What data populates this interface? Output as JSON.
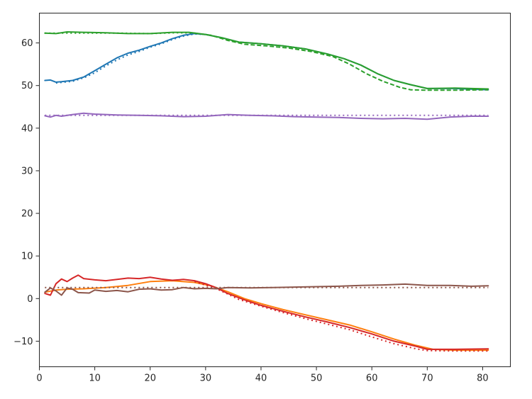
{
  "chart_data": {
    "type": "line",
    "title": "",
    "xlabel": "",
    "ylabel": "",
    "xlim": [
      0,
      85
    ],
    "ylim": [
      -16,
      67
    ],
    "xticks": [
      0,
      10,
      20,
      30,
      40,
      50,
      60,
      70,
      80
    ],
    "yticks": [
      -10,
      0,
      10,
      20,
      30,
      40,
      50,
      60
    ],
    "ytick_labels": [
      "−10",
      "0",
      "10",
      "20",
      "30",
      "40",
      "50",
      "60"
    ],
    "grid": false,
    "legend": "none",
    "series": [
      {
        "color": "#1f77b4",
        "style": "solid",
        "points": [
          [
            1,
            51.2
          ],
          [
            2,
            51.3
          ],
          [
            3,
            50.8
          ],
          [
            4,
            50.9
          ],
          [
            6,
            51.2
          ],
          [
            8,
            52
          ],
          [
            10,
            53.5
          ],
          [
            12,
            55
          ],
          [
            14,
            56.5
          ],
          [
            16,
            57.6
          ],
          [
            18,
            58.3
          ],
          [
            20,
            59.2
          ],
          [
            22,
            60
          ],
          [
            24,
            61
          ],
          [
            26,
            61.8
          ],
          [
            28,
            62.2
          ],
          [
            30,
            62
          ],
          [
            33,
            61.2
          ],
          [
            36,
            60.2
          ],
          [
            40,
            59.8
          ],
          [
            44,
            59.3
          ],
          [
            48,
            58.6
          ],
          [
            52,
            57.4
          ],
          [
            55,
            56.3
          ],
          [
            58,
            54.8
          ],
          [
            61,
            52.8
          ],
          [
            64,
            51.2
          ],
          [
            67,
            50.2
          ],
          [
            70,
            49.3
          ],
          [
            75,
            49.3
          ],
          [
            81,
            49
          ]
        ]
      },
      {
        "color": "#1f77b4",
        "style": "dotted",
        "points": [
          [
            3,
            50.6
          ],
          [
            6,
            51
          ],
          [
            8,
            51.8
          ],
          [
            10,
            53
          ],
          [
            12,
            54.6
          ],
          [
            14,
            56
          ],
          [
            16,
            57.2
          ],
          [
            18,
            58
          ],
          [
            20,
            59
          ],
          [
            22,
            59.8
          ],
          [
            24,
            60.8
          ],
          [
            26,
            61.6
          ],
          [
            28,
            62.1
          ],
          [
            30,
            62
          ]
        ]
      },
      {
        "color": "#2ca02c",
        "style": "solid",
        "points": [
          [
            1,
            62.3
          ],
          [
            3,
            62.2
          ],
          [
            5,
            62.6
          ],
          [
            8,
            62.5
          ],
          [
            12,
            62.4
          ],
          [
            16,
            62.2
          ],
          [
            20,
            62.2
          ],
          [
            24,
            62.5
          ],
          [
            27,
            62.5
          ],
          [
            30,
            62
          ],
          [
            33,
            61.2
          ],
          [
            36,
            60.2
          ],
          [
            40,
            59.8
          ],
          [
            44,
            59.3
          ],
          [
            48,
            58.6
          ],
          [
            52,
            57.4
          ],
          [
            55,
            56.3
          ],
          [
            58,
            54.8
          ],
          [
            61,
            52.8
          ],
          [
            64,
            51.2
          ],
          [
            67,
            50.2
          ],
          [
            70,
            49.3
          ],
          [
            75,
            49.4
          ],
          [
            81,
            49.2
          ]
        ]
      },
      {
        "color": "#2ca02c",
        "style": "dotted",
        "points": [
          [
            1,
            62.3
          ],
          [
            5,
            62.3
          ],
          [
            10,
            62.3
          ],
          [
            15,
            62.3
          ],
          [
            20,
            62.2
          ],
          [
            25,
            62.4
          ],
          [
            28,
            62.3
          ]
        ]
      },
      {
        "color": "#2ca02c",
        "style": "dashed",
        "points": [
          [
            28,
            62.3
          ],
          [
            31,
            61.8
          ],
          [
            34,
            60.6
          ],
          [
            37,
            59.7
          ],
          [
            41,
            59.3
          ],
          [
            45,
            58.8
          ],
          [
            49,
            58
          ],
          [
            53,
            56.8
          ],
          [
            56,
            55
          ],
          [
            59,
            52.8
          ],
          [
            62,
            51
          ],
          [
            65,
            49.6
          ],
          [
            67,
            49
          ],
          [
            70,
            48.9
          ],
          [
            75,
            48.9
          ],
          [
            81,
            49
          ]
        ]
      },
      {
        "color": "#9467bd",
        "style": "solid",
        "points": [
          [
            1,
            42.9
          ],
          [
            2,
            42.6
          ],
          [
            3,
            43
          ],
          [
            4,
            42.8
          ],
          [
            6,
            43.2
          ],
          [
            8,
            43.5
          ],
          [
            10,
            43.3
          ],
          [
            14,
            43.1
          ],
          [
            18,
            43
          ],
          [
            22,
            42.9
          ],
          [
            26,
            42.7
          ],
          [
            30,
            42.8
          ],
          [
            34,
            43.2
          ],
          [
            38,
            43
          ],
          [
            42,
            42.9
          ],
          [
            46,
            42.7
          ],
          [
            50,
            42.6
          ],
          [
            54,
            42.5
          ],
          [
            58,
            42.3
          ],
          [
            62,
            42.2
          ],
          [
            66,
            42.3
          ],
          [
            70,
            42.1
          ],
          [
            74,
            42.6
          ],
          [
            78,
            42.8
          ],
          [
            81,
            42.8
          ]
        ]
      },
      {
        "color": "#9467bd",
        "style": "dotted",
        "points": [
          [
            1,
            43
          ],
          [
            20,
            43
          ],
          [
            40,
            43
          ],
          [
            60,
            43
          ],
          [
            81,
            43
          ]
        ]
      },
      {
        "color": "#ff7f0e",
        "style": "solid",
        "points": [
          [
            1,
            1.5
          ],
          [
            3,
            2
          ],
          [
            5,
            2.2
          ],
          [
            8,
            2.3
          ],
          [
            12,
            2.6
          ],
          [
            16,
            3.1
          ],
          [
            20,
            4
          ],
          [
            24,
            4.2
          ],
          [
            28,
            3.8
          ],
          [
            31,
            3
          ],
          [
            34,
            1.6
          ],
          [
            37,
            0
          ],
          [
            40,
            -1.2
          ],
          [
            44,
            -2.6
          ],
          [
            48,
            -3.8
          ],
          [
            52,
            -5
          ],
          [
            56,
            -6.2
          ],
          [
            60,
            -7.8
          ],
          [
            64,
            -9.5
          ],
          [
            68,
            -11
          ],
          [
            71,
            -11.9
          ],
          [
            75,
            -12.1
          ],
          [
            81,
            -12.1
          ]
        ]
      },
      {
        "color": "#d62728",
        "style": "solid",
        "points": [
          [
            1,
            1.2
          ],
          [
            2,
            0.8
          ],
          [
            3,
            3.5
          ],
          [
            4,
            4.6
          ],
          [
            5,
            4
          ],
          [
            6,
            4.8
          ],
          [
            7,
            5.5
          ],
          [
            8,
            4.7
          ],
          [
            10,
            4.4
          ],
          [
            12,
            4.2
          ],
          [
            14,
            4.5
          ],
          [
            16,
            4.8
          ],
          [
            18,
            4.7
          ],
          [
            20,
            5
          ],
          [
            22,
            4.6
          ],
          [
            24,
            4.3
          ],
          [
            26,
            4.5
          ],
          [
            28,
            4.2
          ],
          [
            30,
            3.5
          ],
          [
            32,
            2.5
          ],
          [
            34,
            1.2
          ],
          [
            37,
            -0.3
          ],
          [
            40,
            -1.6
          ],
          [
            44,
            -3
          ],
          [
            48,
            -4.3
          ],
          [
            52,
            -5.5
          ],
          [
            56,
            -6.8
          ],
          [
            60,
            -8.3
          ],
          [
            64,
            -10
          ],
          [
            68,
            -11.2
          ],
          [
            70,
            -11.9
          ],
          [
            75,
            -11.9
          ],
          [
            81,
            -11.8
          ]
        ]
      },
      {
        "color": "#d62728",
        "style": "dotted",
        "points": [
          [
            28,
            4
          ],
          [
            32,
            2.3
          ],
          [
            36,
            -0.2
          ],
          [
            40,
            -1.8
          ],
          [
            44,
            -3.3
          ],
          [
            48,
            -4.7
          ],
          [
            52,
            -6
          ],
          [
            56,
            -7.3
          ],
          [
            60,
            -9
          ],
          [
            64,
            -10.6
          ],
          [
            68,
            -11.8
          ],
          [
            70,
            -12.2
          ],
          [
            75,
            -12.3
          ],
          [
            81,
            -12.3
          ]
        ]
      },
      {
        "color": "#8c564b",
        "style": "solid",
        "points": [
          [
            1,
            1.5
          ],
          [
            2,
            2.5
          ],
          [
            3,
            1.8
          ],
          [
            4,
            0.8
          ],
          [
            5,
            2.5
          ],
          [
            6,
            2.2
          ],
          [
            7,
            1.4
          ],
          [
            9,
            1.3
          ],
          [
            10,
            2
          ],
          [
            12,
            1.7
          ],
          [
            14,
            1.9
          ],
          [
            16,
            1.6
          ],
          [
            18,
            2.2
          ],
          [
            20,
            2.3
          ],
          [
            22,
            2
          ],
          [
            24,
            2.1
          ],
          [
            26,
            2.6
          ],
          [
            28,
            2.3
          ],
          [
            30,
            2.4
          ],
          [
            32,
            2.3
          ],
          [
            34,
            2.6
          ],
          [
            38,
            2.5
          ],
          [
            42,
            2.6
          ],
          [
            46,
            2.7
          ],
          [
            50,
            2.8
          ],
          [
            54,
            2.9
          ],
          [
            58,
            3.1
          ],
          [
            62,
            3.2
          ],
          [
            66,
            3.4
          ],
          [
            70,
            3.1
          ],
          [
            74,
            3.1
          ],
          [
            78,
            2.9
          ],
          [
            81,
            3
          ]
        ]
      },
      {
        "color": "#8c564b",
        "style": "dotted",
        "points": [
          [
            1,
            2.6
          ],
          [
            20,
            2.6
          ],
          [
            40,
            2.6
          ],
          [
            60,
            2.6
          ],
          [
            81,
            2.6
          ]
        ]
      }
    ]
  }
}
